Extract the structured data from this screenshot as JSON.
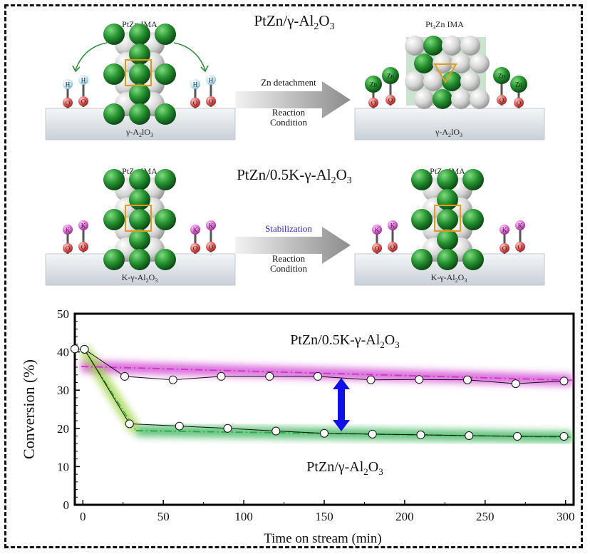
{
  "top_panel": {
    "title_prefix": "PtZn/γ-Al",
    "title_sub1": "2",
    "title_mid": "O",
    "title_sub2": "3",
    "left_label": "PtZn IMA",
    "right_label_pre": "Pt",
    "right_label_sub": "3",
    "right_label_post": "Zn IMA",
    "support_left_pre": "γ-A",
    "support_left_sub1": "2",
    "support_left_mid": "lO",
    "support_left_sub2": "3",
    "support_right_pre": "γ-A",
    "support_right_sub1": "2",
    "support_right_mid": "lO",
    "support_right_sub2": "3",
    "arrow_top_text": "Zn detachment",
    "arrow_bottom_line1": "Reaction",
    "arrow_bottom_line2": "Condition",
    "hydroxyl_h": "H",
    "hydroxyl_o": "O",
    "zn_label": "Zn"
  },
  "middle_panel": {
    "title_prefix": "PtZn/0.5K-γ-Al",
    "title_sub1": "2",
    "title_mid": "O",
    "title_sub2": "3",
    "left_label": "PtZn IMA",
    "right_label": "PtZn IMA",
    "support_pre": "K-γ-Al",
    "support_sub1": "2",
    "support_mid": "O",
    "support_sub2": "3",
    "arrow_top_text": "Stabilization",
    "arrow_bottom_line1": "Reaction",
    "arrow_bottom_line2": "Condition",
    "k_label": "K",
    "o_label": "O"
  },
  "chart_data": {
    "type": "line",
    "xlabel": "Time on stream (min)",
    "ylabel": "Conversion (%)",
    "xlim": [
      -5,
      305
    ],
    "ylim": [
      0,
      50
    ],
    "xticks": [
      0,
      50,
      100,
      150,
      200,
      250,
      300
    ],
    "yticks": [
      0,
      10,
      20,
      30,
      40,
      50
    ],
    "series": [
      {
        "name_pre": "PtZn/0.5K-γ-Al",
        "name_sub1": "2",
        "name_mid": "O",
        "name_sub2": "3",
        "color": "#cc33cc",
        "x": [
          -5,
          1,
          26,
          56,
          86,
          116,
          146,
          179,
          209,
          239,
          269,
          299
        ],
        "y": [
          40.8,
          40.7,
          33.6,
          32.7,
          33.6,
          33.6,
          33.6,
          32.7,
          32.8,
          32.7,
          31.7,
          32.4
        ],
        "trend": [
          [
            -1,
            36.2
          ],
          [
            304,
            32.6
          ]
        ]
      },
      {
        "name_pre": "PtZn/γ-Al",
        "name_sub1": "2",
        "name_mid": "O",
        "name_sub2": "3",
        "color": "#22aa44",
        "x": [
          -5,
          1,
          29,
          60,
          90,
          120,
          150,
          180,
          210,
          240,
          270,
          299
        ],
        "y": [
          40.8,
          40.7,
          21.2,
          20.6,
          20.0,
          19.3,
          18.7,
          18.5,
          18.3,
          18.1,
          17.9,
          17.9
        ],
        "trend": [
          [
            33,
            19.4
          ],
          [
            304,
            17.7
          ]
        ],
        "drop": [
          [
            1,
            40.6
          ],
          [
            33,
            19.4
          ]
        ]
      }
    ]
  },
  "colors": {
    "pt": "#e2e2e2",
    "zn": "#2f9e3a",
    "h": "#bfe6f4",
    "o": "#e45a58",
    "k": "#e36ad9",
    "highlight": "#e39a1c",
    "arrow": "#999999",
    "double_arrow": "#1010e8"
  }
}
